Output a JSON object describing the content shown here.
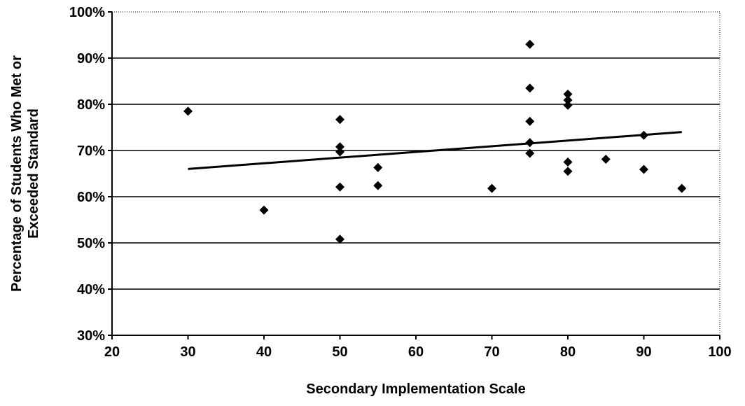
{
  "chart_data": {
    "type": "scatter",
    "title": "",
    "xlabel": "Secondary Implementation Scale",
    "ylabel_lines": [
      "Percentage of Students Who Met or",
      "Exceeded Standard"
    ],
    "xlim": [
      20,
      100
    ],
    "ylim": [
      30,
      100
    ],
    "x_ticks": [
      20,
      30,
      40,
      50,
      60,
      70,
      80,
      90,
      100
    ],
    "x_tick_labels": [
      "20",
      "30",
      "40",
      "50",
      "60",
      "70",
      "80",
      "90",
      "100"
    ],
    "y_ticks": [
      30,
      40,
      50,
      60,
      70,
      80,
      90,
      100
    ],
    "y_tick_labels": [
      "30%",
      "40%",
      "50%",
      "60%",
      "70%",
      "80%",
      "90%",
      "100%"
    ],
    "grid": {
      "horizontal": true,
      "vertical": false
    },
    "legend": "none",
    "marker": "diamond",
    "marker_color": "#000000",
    "series": [
      {
        "points": [
          {
            "x": 30,
            "y": 78.5
          },
          {
            "x": 40,
            "y": 57.1
          },
          {
            "x": 50,
            "y": 76.7
          },
          {
            "x": 50,
            "y": 70.8
          },
          {
            "x": 50,
            "y": 69.7
          },
          {
            "x": 50,
            "y": 62.1
          },
          {
            "x": 50,
            "y": 50.8
          },
          {
            "x": 55,
            "y": 66.3
          },
          {
            "x": 55,
            "y": 62.4
          },
          {
            "x": 70,
            "y": 61.8
          },
          {
            "x": 75,
            "y": 93.0
          },
          {
            "x": 75,
            "y": 83.5
          },
          {
            "x": 75,
            "y": 76.3
          },
          {
            "x": 75,
            "y": 71.7
          },
          {
            "x": 75,
            "y": 69.4
          },
          {
            "x": 80,
            "y": 82.2
          },
          {
            "x": 80,
            "y": 80.9
          },
          {
            "x": 80,
            "y": 79.8
          },
          {
            "x": 80,
            "y": 67.5
          },
          {
            "x": 80,
            "y": 65.5
          },
          {
            "x": 85,
            "y": 68.1
          },
          {
            "x": 90,
            "y": 73.3
          },
          {
            "x": 90,
            "y": 65.9
          },
          {
            "x": 95,
            "y": 61.8
          }
        ]
      }
    ],
    "trendline": {
      "type": "linear",
      "x": [
        30,
        95
      ],
      "y": [
        66.0,
        74.0
      ]
    }
  }
}
